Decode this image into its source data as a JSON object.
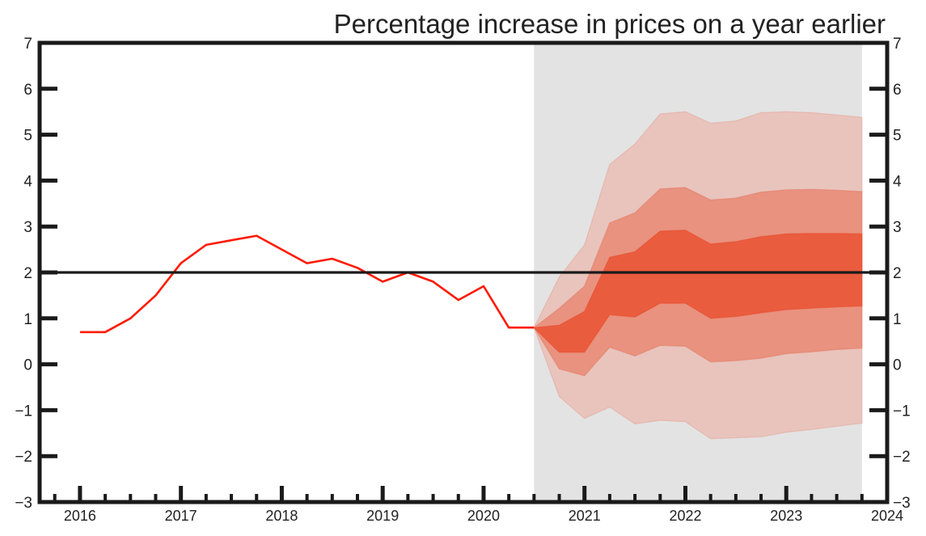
{
  "chart_data": {
    "type": "area",
    "title": "Percentage increase in prices on a year earlier",
    "xlabel": "",
    "ylabel": "",
    "xlim": [
      2015.6,
      2024.0
    ],
    "ylim": [
      -3,
      7
    ],
    "yticks": [
      -3,
      -2,
      -1,
      0,
      1,
      2,
      3,
      4,
      5,
      6,
      7
    ],
    "ytick_labels": [
      "−3",
      "−2",
      "−1",
      "0",
      "1",
      "2",
      "3",
      "4",
      "5",
      "6",
      "7"
    ],
    "xticks": [
      2016,
      2017,
      2018,
      2019,
      2020,
      2021,
      2022,
      2023,
      2024
    ],
    "xtick_labels": [
      "2016",
      "2017",
      "2018",
      "2019",
      "2020",
      "2021",
      "2022",
      "2023",
      "2024"
    ],
    "target_line": 2,
    "forecast_shading": {
      "x_start": 2020.5,
      "x_end": 2023.75
    },
    "series": [
      {
        "values": [
          [
            2016.0,
            0.7
          ],
          [
            2016.25,
            0.7
          ],
          [
            2016.5,
            1.0
          ],
          [
            2016.75,
            1.5
          ],
          [
            2017.0,
            2.2
          ],
          [
            2017.25,
            2.6
          ],
          [
            2017.5,
            2.7
          ],
          [
            2017.75,
            2.8
          ],
          [
            2018.0,
            2.5
          ],
          [
            2018.25,
            2.2
          ],
          [
            2018.5,
            2.3
          ],
          [
            2018.75,
            2.1
          ],
          [
            2019.0,
            1.8
          ],
          [
            2019.25,
            2.0
          ],
          [
            2019.5,
            1.8
          ],
          [
            2019.75,
            1.4
          ],
          [
            2020.0,
            1.7
          ],
          [
            2020.25,
            0.8
          ],
          [
            2020.5,
            0.8
          ]
        ]
      }
    ],
    "fan_bands": {
      "x": [
        2020.5,
        2020.75,
        2021.0,
        2021.25,
        2021.5,
        2021.75,
        2022.0,
        2022.25,
        2022.5,
        2022.75,
        2023.0,
        2023.25,
        2023.5,
        2023.75
      ],
      "outer_upper": [
        0.8,
        1.9,
        2.6,
        4.35,
        4.8,
        5.45,
        5.5,
        5.25,
        5.3,
        5.48,
        5.5,
        5.48,
        5.43,
        5.38
      ],
      "outer_lower": [
        0.8,
        -0.7,
        -1.18,
        -0.93,
        -1.3,
        -1.22,
        -1.25,
        -1.62,
        -1.6,
        -1.58,
        -1.48,
        -1.42,
        -1.35,
        -1.28
      ],
      "middle_upper": [
        0.8,
        1.22,
        1.7,
        3.08,
        3.3,
        3.82,
        3.85,
        3.58,
        3.62,
        3.75,
        3.8,
        3.81,
        3.79,
        3.76
      ],
      "middle_lower": [
        0.8,
        -0.1,
        -0.25,
        0.37,
        0.18,
        0.41,
        0.39,
        0.05,
        0.08,
        0.13,
        0.23,
        0.27,
        0.32,
        0.35
      ],
      "inner_upper": [
        0.8,
        0.85,
        1.15,
        2.33,
        2.45,
        2.9,
        2.92,
        2.62,
        2.67,
        2.78,
        2.84,
        2.85,
        2.85,
        2.84
      ],
      "inner_lower": [
        0.8,
        0.26,
        0.26,
        1.08,
        1.03,
        1.33,
        1.33,
        1.0,
        1.04,
        1.12,
        1.19,
        1.22,
        1.25,
        1.27
      ]
    },
    "grid": false,
    "legend": "none",
    "colors": {
      "history_line": "#ff1a00",
      "target_line": "#1a1a1a",
      "forecast_background": "#e3e3e3",
      "band_outer": "#e8c4bd",
      "band_middle": "#e8927f",
      "band_inner": "#ea5c3e",
      "frame": "#1a1a1a"
    }
  }
}
